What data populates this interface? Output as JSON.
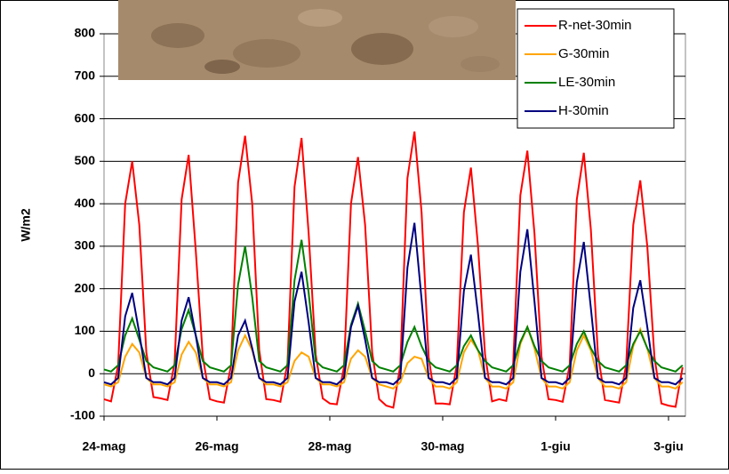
{
  "chart_data": {
    "type": "line",
    "y_label": "W/m2",
    "x": [
      0,
      0.125,
      0.25,
      0.375,
      0.5,
      0.625,
      0.75,
      0.875,
      1,
      1.125,
      1.25,
      1.375,
      1.5,
      1.625,
      1.75,
      1.875,
      2,
      2.125,
      2.25,
      2.375,
      2.5,
      2.625,
      2.75,
      2.875,
      3,
      3.125,
      3.25,
      3.375,
      3.5,
      3.625,
      3.75,
      3.875,
      4,
      4.125,
      4.25,
      4.375,
      4.5,
      4.625,
      4.75,
      4.875,
      5,
      5.125,
      5.25,
      5.375,
      5.5,
      5.625,
      5.75,
      5.875,
      6,
      6.125,
      6.25,
      6.375,
      6.5,
      6.625,
      6.75,
      6.875,
      7,
      7.125,
      7.25,
      7.375,
      7.5,
      7.625,
      7.75,
      7.875,
      8,
      8.125,
      8.25,
      8.375,
      8.5,
      8.625,
      8.75,
      8.875,
      9,
      9.125,
      9.25,
      9.375,
      9.5,
      9.625,
      9.75,
      9.875,
      10,
      10.125,
      10.25
    ],
    "series": [
      {
        "name": "R-net-30min",
        "color": "#ff0000",
        "values": [
          -60,
          -65,
          20,
          400,
          500,
          350,
          50,
          -55,
          -58,
          -62,
          25,
          410,
          515,
          290,
          40,
          -60,
          -65,
          -68,
          20,
          450,
          560,
          400,
          55,
          -60,
          -62,
          -66,
          25,
          440,
          555,
          330,
          45,
          -58,
          -70,
          -72,
          15,
          400,
          510,
          350,
          50,
          -60,
          -75,
          -80,
          20,
          460,
          570,
          380,
          40,
          -70,
          -70,
          -72,
          20,
          380,
          485,
          300,
          45,
          -65,
          -60,
          -64,
          25,
          420,
          525,
          330,
          40,
          -60,
          -62,
          -66,
          20,
          410,
          520,
          340,
          45,
          -62,
          -65,
          -68,
          20,
          350,
          455,
          300,
          40,
          -70,
          -75,
          -78,
          15
        ]
      },
      {
        "name": "G-30min",
        "color": "#ffa500",
        "values": [
          -25,
          -30,
          -20,
          40,
          70,
          50,
          -10,
          -25,
          -25,
          -30,
          -20,
          45,
          75,
          50,
          -10,
          -25,
          -25,
          -30,
          -20,
          55,
          90,
          55,
          -10,
          -25,
          -25,
          -30,
          -20,
          30,
          50,
          40,
          -10,
          -25,
          -25,
          -30,
          -20,
          35,
          55,
          40,
          -10,
          -25,
          -30,
          -35,
          -20,
          25,
          40,
          35,
          -10,
          -30,
          -30,
          -35,
          -20,
          50,
          80,
          55,
          -10,
          -30,
          -30,
          -35,
          -20,
          70,
          110,
          60,
          -10,
          -30,
          -30,
          -35,
          -20,
          55,
          90,
          55,
          -10,
          -30,
          -30,
          -35,
          -20,
          65,
          105,
          60,
          -10,
          -30,
          -30,
          -35,
          -20
        ]
      },
      {
        "name": "LE-30min",
        "color": "#008000",
        "values": [
          10,
          5,
          20,
          90,
          130,
          80,
          30,
          15,
          10,
          5,
          20,
          105,
          150,
          90,
          30,
          15,
          10,
          5,
          20,
          210,
          300,
          180,
          30,
          15,
          10,
          5,
          20,
          220,
          315,
          190,
          30,
          15,
          10,
          5,
          20,
          115,
          165,
          100,
          30,
          15,
          10,
          5,
          20,
          75,
          110,
          65,
          30,
          15,
          10,
          5,
          20,
          65,
          90,
          55,
          30,
          15,
          10,
          5,
          20,
          75,
          110,
          65,
          30,
          15,
          10,
          5,
          20,
          70,
          100,
          60,
          30,
          15,
          10,
          5,
          20,
          70,
          100,
          60,
          30,
          15,
          10,
          5,
          20
        ]
      },
      {
        "name": "H-30min",
        "color": "#000080",
        "values": [
          -20,
          -25,
          -10,
          135,
          190,
          95,
          -10,
          -20,
          -20,
          -25,
          -10,
          125,
          180,
          90,
          -10,
          -20,
          -20,
          -25,
          -10,
          90,
          125,
          60,
          -10,
          -20,
          -20,
          -25,
          -10,
          170,
          240,
          120,
          -10,
          -20,
          -20,
          -25,
          -10,
          110,
          160,
          80,
          -10,
          -20,
          -20,
          -25,
          -10,
          250,
          355,
          175,
          -10,
          -20,
          -20,
          -25,
          -10,
          195,
          280,
          140,
          -10,
          -20,
          -20,
          -25,
          -10,
          240,
          340,
          170,
          -10,
          -20,
          -20,
          -25,
          -10,
          215,
          310,
          155,
          -10,
          -20,
          -20,
          -25,
          -10,
          155,
          220,
          110,
          -10,
          -20,
          -20,
          -25,
          -10
        ]
      }
    ],
    "xlim": [
      0,
      10.3
    ],
    "xticks": [
      {
        "value": 0,
        "label": "24-mag"
      },
      {
        "value": 2,
        "label": "26-mag"
      },
      {
        "value": 4,
        "label": "28-mag"
      },
      {
        "value": 6,
        "label": "30-mag"
      },
      {
        "value": 8,
        "label": "1-giu"
      },
      {
        "value": 10,
        "label": "3-giu"
      }
    ],
    "ylim": [
      -100,
      800
    ],
    "yticks": [
      -100,
      0,
      100,
      200,
      300,
      400,
      500,
      600,
      700,
      800
    ],
    "grid": true,
    "legend": "upper-right"
  }
}
